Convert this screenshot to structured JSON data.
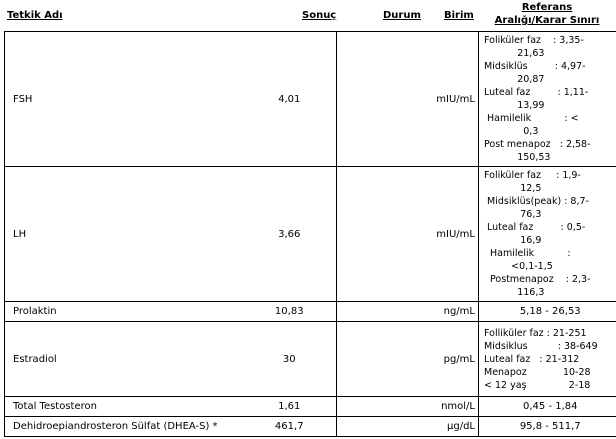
{
  "headers": {
    "test": "Tetkik Adı",
    "result": "Sonuç",
    "status": "Durum",
    "unit": "Birim",
    "reference_line1": "Referans",
    "reference_line2": "Aralığı/Karar Sınırı"
  },
  "rows": [
    {
      "name": "FSH",
      "value": "4,01",
      "status": "",
      "unit": "mIU/mL",
      "reference": [
        "Foliküler faz    : 3,35-",
        "           21,63",
        "Midsiklüs         : 4,97-",
        "           20,87",
        "Luteal faz         : 1,11-",
        "           13,99",
        " Hamilelik           : <",
        "             0,3",
        "Post menapoz   : 2,58-",
        "           150,53"
      ]
    },
    {
      "name": "LH",
      "value": "3,66",
      "status": "",
      "unit": "mIU/mL",
      "reference": [
        "Foliküler faz     : 1,9-",
        "            12,5",
        " Midsiklüs(peak) : 8,7-",
        "            76,3",
        " Luteal faz         : 0,5-",
        "            16,9",
        "  Hamilelik           :",
        "         <0,1-1,5",
        "  Postmenapoz    : 2,3-",
        "           116,3"
      ]
    },
    {
      "name": "Prolaktin",
      "value": "10,83",
      "status": "",
      "unit": "ng/mL",
      "reference_simple": "5,18 - 26,53"
    },
    {
      "name": "Estradiol",
      "value": "30",
      "status": "",
      "unit": "pg/mL",
      "reference": [
        "Folliküler faz : 21-251",
        "Midsiklus          : 38-649",
        "Luteal faz   : 21-312",
        "Menapoz            10-28",
        "< 12 yaş              2-18"
      ]
    },
    {
      "name": "Total Testosteron",
      "value": "1,61",
      "status": "",
      "unit": "nmol/L",
      "reference_simple": "0,45 - 1,84"
    },
    {
      "name": "Dehidroepiandrosteron Sülfat (DHEA-S) *",
      "value": "461,7",
      "status": "",
      "unit": "µg/dL",
      "reference_simple": "95,8 - 511,7"
    }
  ]
}
